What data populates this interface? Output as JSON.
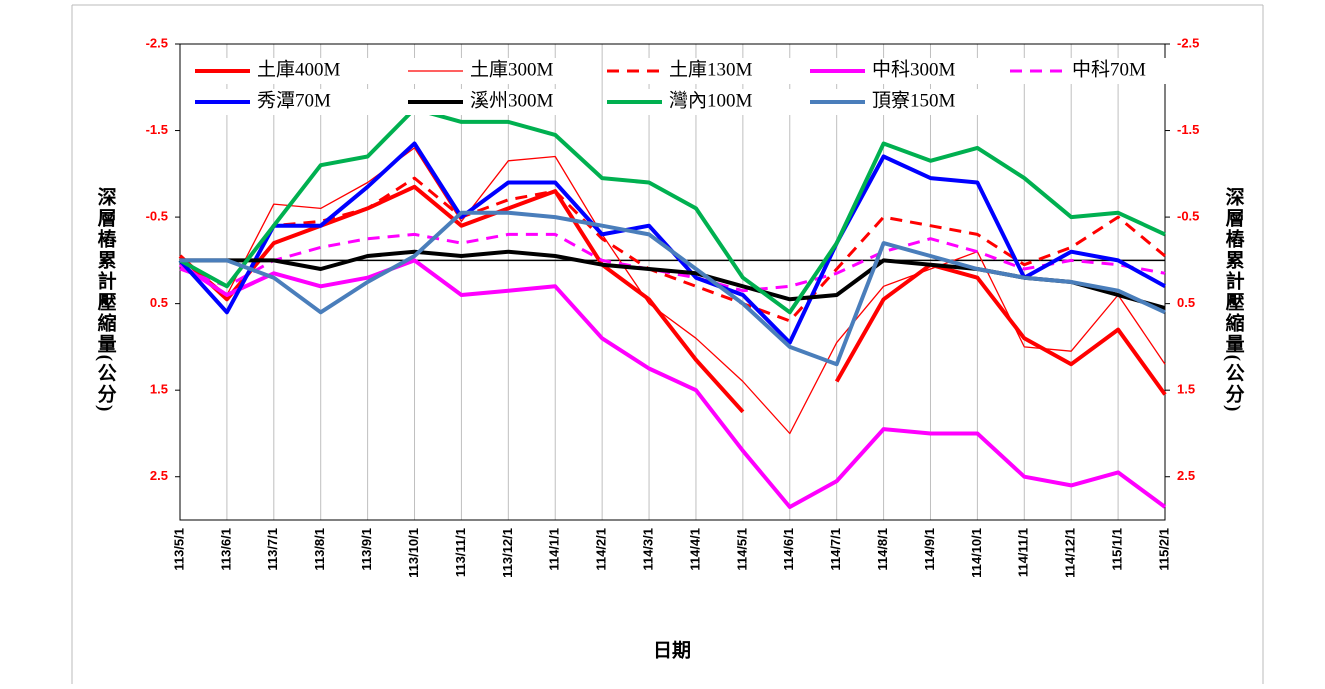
{
  "chart_data": {
    "type": "line",
    "y_label": "深層樁累計壓縮量(公分)",
    "x_label": "日期",
    "categories": [
      "113/5/1",
      "113/6/1",
      "113/7/1",
      "113/8/1",
      "113/9/1",
      "113/10/1",
      "113/11/1",
      "113/12/1",
      "114/1/1",
      "114/2/1",
      "114/3/1",
      "114/4/1",
      "114/5/1",
      "114/6/1",
      "114/7/1",
      "114/8/1",
      "114/9/1",
      "114/10/1",
      "114/11/1",
      "114/12/1",
      "115/1/1",
      "115/2/1"
    ],
    "ylim": [
      -2.5,
      3
    ],
    "yticks": [
      -2.5,
      -1.5,
      -0.5,
      0.5,
      1.5,
      2.5
    ],
    "y_inverted": true,
    "grid": true,
    "series": [
      {
        "name": "土庫400M",
        "color": "#ff0000",
        "width": 4,
        "dashed": false,
        "values": [
          -0.05,
          0.45,
          -0.2,
          -0.4,
          -0.6,
          -0.85,
          -0.4,
          -0.6,
          -0.8,
          0.05,
          0.45,
          1.15,
          1.75,
          null,
          1.4,
          0.45,
          0.05,
          0.2,
          0.9,
          1.2,
          0.8,
          1.55
        ]
      },
      {
        "name": "土庫300M",
        "color": "#ff0000",
        "width": 1.3,
        "dashed": false,
        "values": [
          -0.05,
          0.4,
          -0.65,
          -0.6,
          -0.9,
          -1.3,
          -0.45,
          -1.15,
          -1.2,
          -0.3,
          0.5,
          0.9,
          1.4,
          2.0,
          0.95,
          0.3,
          0.1,
          -0.1,
          1.0,
          1.05,
          0.4,
          1.2
        ]
      },
      {
        "name": "土庫130M",
        "color": "#ff0000",
        "width": 3,
        "dashed": true,
        "values": [
          0,
          0.3,
          -0.4,
          -0.45,
          -0.6,
          -0.95,
          -0.5,
          -0.7,
          -0.8,
          -0.25,
          0.1,
          0.3,
          0.5,
          0.7,
          0.1,
          -0.5,
          -0.4,
          -0.3,
          0.05,
          -0.15,
          -0.5,
          -0.05
        ]
      },
      {
        "name": "中科300M",
        "color": "#ff00ff",
        "width": 4,
        "dashed": false,
        "values": [
          0.05,
          0.4,
          0.15,
          0.3,
          0.2,
          0.0,
          0.4,
          0.35,
          0.3,
          0.9,
          1.25,
          1.5,
          2.2,
          2.85,
          2.55,
          1.95,
          2.0,
          2.0,
          2.5,
          2.6,
          2.45,
          2.85
        ]
      },
      {
        "name": "中科70M",
        "color": "#ff00ff",
        "width": 3,
        "dashed": true,
        "values": [
          0.1,
          0.3,
          0.0,
          -0.15,
          -0.25,
          -0.3,
          -0.2,
          -0.3,
          -0.3,
          0.0,
          0.1,
          0.2,
          0.35,
          0.3,
          0.15,
          -0.1,
          -0.25,
          -0.1,
          0.1,
          0.0,
          0.05,
          0.15
        ]
      },
      {
        "name": "秀潭70M",
        "color": "#0000ff",
        "width": 4,
        "dashed": false,
        "values": [
          0.0,
          0.6,
          -0.4,
          -0.4,
          -0.85,
          -1.35,
          -0.5,
          -0.9,
          -0.9,
          -0.3,
          -0.4,
          0.2,
          0.4,
          0.95,
          -0.2,
          -1.2,
          -0.95,
          -0.9,
          0.2,
          -0.1,
          0.0,
          0.3
        ]
      },
      {
        "name": "溪州300M",
        "color": "#000000",
        "width": 4,
        "dashed": false,
        "values": [
          0.0,
          0.0,
          0.0,
          0.1,
          -0.05,
          -0.1,
          -0.05,
          -0.1,
          -0.05,
          0.05,
          0.1,
          0.15,
          0.3,
          0.45,
          0.4,
          0.0,
          0.05,
          0.1,
          0.2,
          0.25,
          0.4,
          0.55
        ]
      },
      {
        "name": "灣內100M",
        "color": "#00b050",
        "width": 4,
        "dashed": false,
        "values": [
          0.0,
          0.3,
          -0.4,
          -1.1,
          -1.2,
          -1.75,
          -1.6,
          -1.6,
          -1.45,
          -0.95,
          -0.9,
          -0.6,
          0.2,
          0.6,
          -0.2,
          -1.35,
          -1.15,
          -1.3,
          -0.95,
          -0.5,
          -0.55,
          -0.3
        ]
      },
      {
        "name": "頂寮150M",
        "color": "#4a7ebb",
        "width": 4,
        "dashed": false,
        "values": [
          0.0,
          0.0,
          0.2,
          0.6,
          0.25,
          -0.05,
          -0.55,
          -0.55,
          -0.5,
          -0.4,
          -0.3,
          0.1,
          0.5,
          1.0,
          1.2,
          -0.2,
          -0.05,
          0.1,
          0.2,
          0.25,
          0.35,
          0.6
        ]
      }
    ]
  }
}
